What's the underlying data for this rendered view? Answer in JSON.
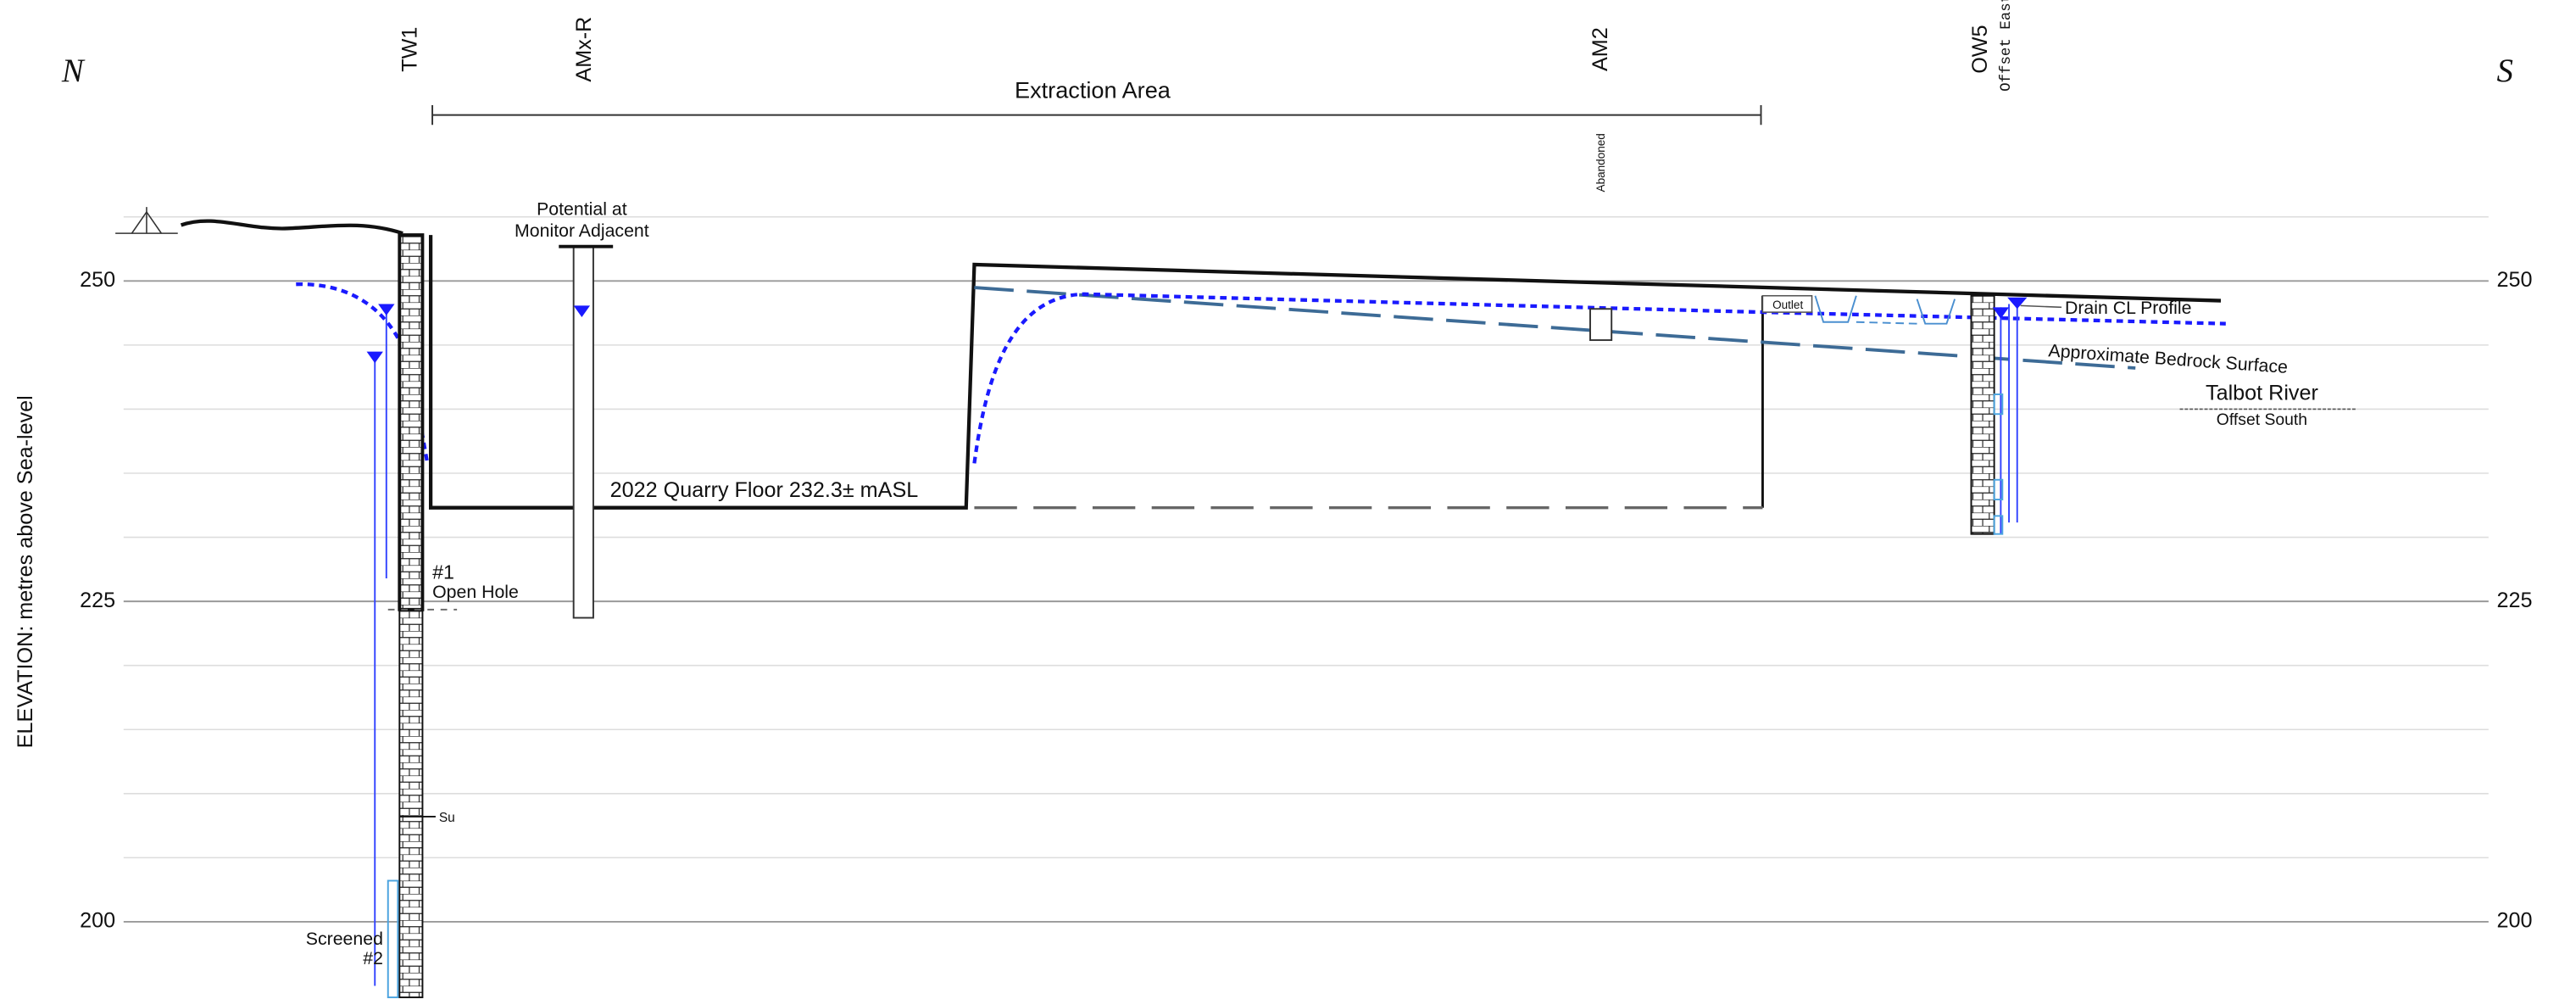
{
  "compass": {
    "left": "N",
    "right": "S"
  },
  "elevation_axis": {
    "label": "ELEVATION: metres above Sea-level",
    "ticks": [
      250,
      225,
      200
    ]
  },
  "wells": [
    {
      "label": "TW1"
    },
    {
      "label": "AMx-R"
    },
    {
      "label": "AM2",
      "note": "Abandoned"
    },
    {
      "label": "OW5",
      "note": "Offset East"
    }
  ],
  "extraction_area": "Extraction  Area",
  "annotations": {
    "potential": [
      "Potential at",
      "Monitor Adjacent"
    ],
    "quarry_floor": "2022 Quarry Floor  232.3± mASL",
    "open_hole": [
      "#1",
      "Open Hole"
    ],
    "screened": [
      "Screened",
      "#2"
    ],
    "su": "Su",
    "outlet": "Outlet",
    "drain": "Drain CL Profile",
    "bedrock": "Approximate Bedrock Surface",
    "river": "Talbot  River",
    "river_note": "Offset  South"
  }
}
